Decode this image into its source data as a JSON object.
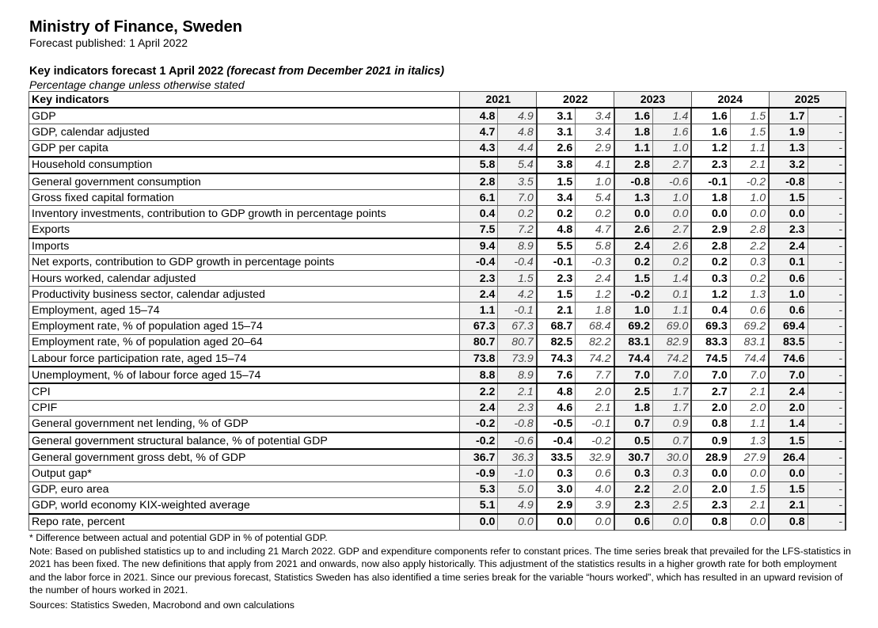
{
  "title": "Ministry of Finance, Sweden",
  "published": "Forecast published: 1 April 2022",
  "table_title": "Key indicators forecast 1 April 2022",
  "table_title_italic": "(forecast from December 2021 in italics)",
  "unit_note": "Percentage change unless otherwise stated",
  "header": {
    "label": "Key indicators",
    "years": [
      "2021",
      "2022",
      "2023",
      "2024",
      "2025"
    ]
  },
  "rows": [
    {
      "label": "GDP",
      "v": [
        "4.8",
        "4.9",
        "3.1",
        "3.4",
        "1.6",
        "1.4",
        "1.6",
        "1.5",
        "1.7",
        "-"
      ]
    },
    {
      "label": "GDP, calendar adjusted",
      "v": [
        "4.7",
        "4.8",
        "3.1",
        "3.4",
        "1.8",
        "1.6",
        "1.6",
        "1.5",
        "1.9",
        "-"
      ]
    },
    {
      "label": "GDP per capita",
      "v": [
        "4.3",
        "4.4",
        "2.6",
        "2.9",
        "1.1",
        "1.0",
        "1.2",
        "1.1",
        "1.3",
        "-"
      ]
    },
    {
      "label": "Household consumption",
      "v": [
        "5.8",
        "5.4",
        "3.8",
        "4.1",
        "2.8",
        "2.7",
        "2.3",
        "2.1",
        "3.2",
        "-"
      ]
    },
    {
      "label": "General government consumption",
      "v": [
        "2.8",
        "3.5",
        "1.5",
        "1.0",
        "-0.8",
        "-0.6",
        "-0.1",
        "-0.2",
        "-0.8",
        "-"
      ]
    },
    {
      "label": "Gross fixed capital formation",
      "v": [
        "6.1",
        "7.0",
        "3.4",
        "5.4",
        "1.3",
        "1.0",
        "1.8",
        "1.0",
        "1.5",
        "-"
      ]
    },
    {
      "label": "Inventory investments, contribution to GDP growth in percentage points",
      "v": [
        "0.4",
        "0.2",
        "0.2",
        "0.2",
        "0.0",
        "0.0",
        "0.0",
        "0.0",
        "0.0",
        "-"
      ]
    },
    {
      "label": "Exports",
      "v": [
        "7.5",
        "7.2",
        "4.8",
        "4.7",
        "2.6",
        "2.7",
        "2.9",
        "2.8",
        "2.3",
        "-"
      ]
    },
    {
      "label": "Imports",
      "v": [
        "9.4",
        "8.9",
        "5.5",
        "5.8",
        "2.4",
        "2.6",
        "2.8",
        "2.2",
        "2.4",
        "-"
      ]
    },
    {
      "label": "Net exports, contribution to GDP growth in percentage points",
      "v": [
        "-0.4",
        "-0.4",
        "-0.1",
        "-0.3",
        "0.2",
        "0.2",
        "0.2",
        "0.3",
        "0.1",
        "-"
      ]
    },
    {
      "label": "Hours worked, calendar adjusted",
      "v": [
        "2.3",
        "1.5",
        "2.3",
        "2.4",
        "1.5",
        "1.4",
        "0.3",
        "0.2",
        "0.6",
        "-"
      ]
    },
    {
      "label": "Productivity business sector, calendar adjusted",
      "v": [
        "2.4",
        "4.2",
        "1.5",
        "1.2",
        "-0.2",
        "0.1",
        "1.2",
        "1.3",
        "1.0",
        "-"
      ]
    },
    {
      "label": "Employment, aged 15–74",
      "v": [
        "1.1",
        "-0.1",
        "2.1",
        "1.8",
        "1.0",
        "1.1",
        "0.4",
        "0.6",
        "0.6",
        "-"
      ]
    },
    {
      "label": "Employment rate, % of population aged 15–74",
      "v": [
        "67.3",
        "67.3",
        "68.7",
        "68.4",
        "69.2",
        "69.0",
        "69.3",
        "69.2",
        "69.4",
        "-"
      ]
    },
    {
      "label": "Employment rate, % of population aged 20–64",
      "v": [
        "80.7",
        "80.7",
        "82.5",
        "82.2",
        "83.1",
        "82.9",
        "83.3",
        "83.1",
        "83.5",
        "-"
      ]
    },
    {
      "label": "Labour force participation rate, aged 15–74",
      "v": [
        "73.8",
        "73.9",
        "74.3",
        "74.2",
        "74.4",
        "74.2",
        "74.5",
        "74.4",
        "74.6",
        "-"
      ]
    },
    {
      "label": "Unemployment, % of labour force aged 15–74",
      "v": [
        "8.8",
        "8.9",
        "7.6",
        "7.7",
        "7.0",
        "7.0",
        "7.0",
        "7.0",
        "7.0",
        "-"
      ]
    },
    {
      "label": "CPI",
      "v": [
        "2.2",
        "2.1",
        "4.8",
        "2.0",
        "2.5",
        "1.7",
        "2.7",
        "2.1",
        "2.4",
        "-"
      ]
    },
    {
      "label": "CPIF",
      "v": [
        "2.4",
        "2.3",
        "4.6",
        "2.1",
        "1.8",
        "1.7",
        "2.0",
        "2.0",
        "2.0",
        "-"
      ]
    },
    {
      "label": "General government net lending, % of GDP",
      "v": [
        "-0.2",
        "-0.8",
        "-0.5",
        "-0.1",
        "0.7",
        "0.9",
        "0.8",
        "1.1",
        "1.4",
        "-"
      ]
    },
    {
      "label": "General government structural balance, % of potential GDP",
      "v": [
        "-0.2",
        "-0.6",
        "-0.4",
        "-0.2",
        "0.5",
        "0.7",
        "0.9",
        "1.3",
        "1.5",
        "-"
      ]
    },
    {
      "label": "General government gross debt, % of GDP",
      "v": [
        "36.7",
        "36.3",
        "33.5",
        "32.9",
        "30.7",
        "30.0",
        "28.9",
        "27.9",
        "26.4",
        "-"
      ]
    },
    {
      "label": "Output gap*",
      "v": [
        "-0.9",
        "-1.0",
        "0.3",
        "0.6",
        "0.3",
        "0.3",
        "0.0",
        "0.0",
        "0.0",
        "-"
      ]
    },
    {
      "label": "GDP, euro area",
      "v": [
        "5.3",
        "5.0",
        "3.0",
        "4.0",
        "2.2",
        "2.0",
        "2.0",
        "1.5",
        "1.5",
        "-"
      ]
    },
    {
      "label": "GDP, world economy KIX-weighted average",
      "v": [
        "5.1",
        "4.9",
        "2.9",
        "3.9",
        "2.3",
        "2.5",
        "2.3",
        "2.1",
        "2.1",
        "-"
      ]
    },
    {
      "label": "Repo rate, percent",
      "v": [
        "0.0",
        "0.0",
        "0.0",
        "0.0",
        "0.6",
        "0.0",
        "0.8",
        "0.0",
        "0.8",
        "-"
      ]
    }
  ],
  "footnote": "* Difference between actual and potential GDP in % of potential GDP.",
  "note": "Note: Based on published statistics up to and including 21 March 2022. GDP and expenditure components refer to constant prices. The time series break that prevailed for the LFS-statistics in 2021 has been fixed. The new definitions that apply from 2021 and onwards, now also apply historically. This adjustment of the statistics results in a higher growth rate for both employment and the labor force in 2021. Since our previous forecast, Statistics Sweden has also identified a time series break for the variable “hours worked”, which has resulted in an upward revision of the number of hours worked in 2021.",
  "sources": "Sources: Statistics Sweden, Macrobond and own calculations"
}
